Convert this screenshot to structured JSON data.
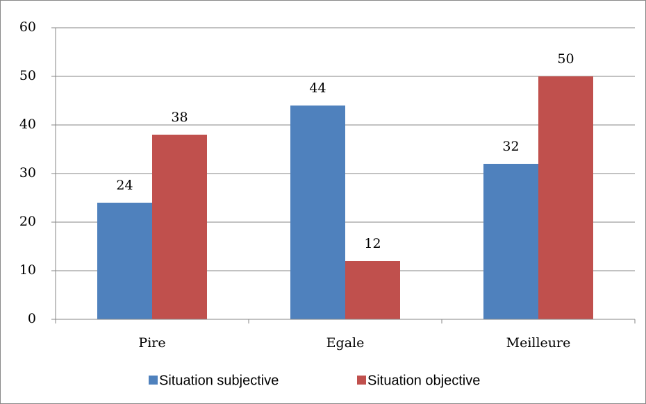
{
  "chart_data": {
    "type": "bar",
    "categories": [
      "Pire",
      "Egale",
      "Meilleure"
    ],
    "series": [
      {
        "name": "Situation subjective",
        "color": "#4f81bd",
        "values": [
          24,
          44,
          32
        ]
      },
      {
        "name": "Situation objective",
        "color": "#c0504d",
        "values": [
          38,
          12,
          50
        ]
      }
    ],
    "ylim": [
      0,
      60
    ],
    "yticks": [
      0,
      10,
      20,
      30,
      40,
      50,
      60
    ],
    "grid": true,
    "legend": "bottom"
  }
}
